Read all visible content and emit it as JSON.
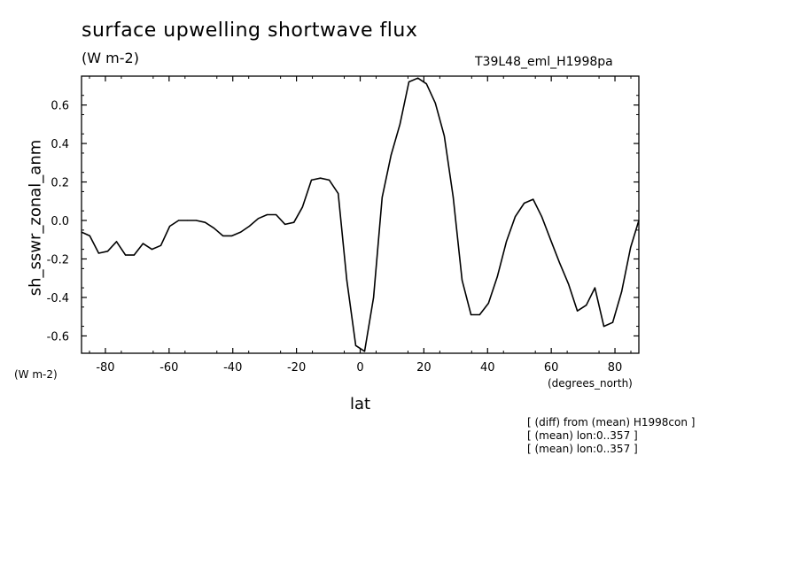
{
  "chart_data": {
    "type": "line",
    "title": "surface upwelling shortwave flux",
    "units": "(W m-2)",
    "experiment": "T39L48_eml_H1998pa",
    "xlabel": "lat",
    "xunits": "(degrees_north)",
    "ylabel": "sh_sswr_zonal_anm",
    "yunits": "(W m-2)",
    "xlim": [
      -87.5,
      87.5
    ],
    "ylim": [
      -0.69,
      0.75
    ],
    "xticks": [
      -80,
      -60,
      -40,
      -20,
      0,
      20,
      40,
      60,
      80
    ],
    "xtick_labels": [
      "-80",
      "-60",
      "-40",
      "-20",
      "0",
      "20",
      "40",
      "60",
      "80"
    ],
    "yticks": [
      -0.6,
      -0.4,
      -0.2,
      0.0,
      0.2,
      0.4,
      0.6
    ],
    "ytick_labels": [
      "-0.6",
      "-0.4",
      "-0.2",
      "0.0",
      "0.2",
      "0.4",
      "0.6"
    ],
    "grid": false,
    "series": [
      {
        "x": [
          -87.5,
          -84.9,
          -82.1,
          -79.3,
          -76.5,
          -73.7,
          -71.0,
          -68.2,
          -65.4,
          -62.6,
          -59.8,
          -57.0,
          -54.3,
          -51.5,
          -48.7,
          -45.9,
          -43.1,
          -40.3,
          -37.5,
          -34.8,
          -32.0,
          -29.2,
          -26.4,
          -23.6,
          -20.8,
          -18.1,
          -15.3,
          -12.5,
          -9.7,
          -6.9,
          -4.2,
          -1.4,
          1.4,
          4.2,
          6.9,
          9.7,
          12.5,
          15.3,
          18.1,
          20.8,
          23.6,
          26.4,
          29.2,
          32.0,
          34.8,
          37.5,
          40.3,
          43.1,
          45.9,
          48.7,
          51.5,
          54.3,
          57.0,
          59.8,
          62.6,
          65.4,
          68.2,
          71.0,
          73.7,
          76.5,
          79.3,
          82.1,
          84.9,
          87.5
        ],
        "y": [
          -0.06,
          -0.08,
          -0.17,
          -0.16,
          -0.11,
          -0.18,
          -0.18,
          -0.12,
          -0.15,
          -0.13,
          -0.03,
          0.0,
          0.0,
          0.0,
          -0.01,
          -0.04,
          -0.08,
          -0.08,
          -0.06,
          -0.03,
          0.01,
          0.03,
          0.03,
          -0.02,
          -0.01,
          0.07,
          0.21,
          0.22,
          0.21,
          0.14,
          -0.31,
          -0.65,
          -0.68,
          -0.4,
          0.12,
          0.34,
          0.5,
          0.72,
          0.74,
          0.71,
          0.61,
          0.44,
          0.12,
          -0.31,
          -0.49,
          -0.49,
          -0.43,
          -0.29,
          -0.11,
          0.02,
          0.09,
          0.11,
          0.02,
          -0.1,
          -0.22,
          -0.33,
          -0.47,
          -0.44,
          -0.35,
          -0.55,
          -0.53,
          -0.37,
          -0.14,
          0.0
        ]
      }
    ]
  },
  "notes": [
    "[ (diff) from (mean) H1998con ]",
    "[ (mean) lon:0..357 ]",
    "[ (mean) lon:0..357 ]"
  ]
}
